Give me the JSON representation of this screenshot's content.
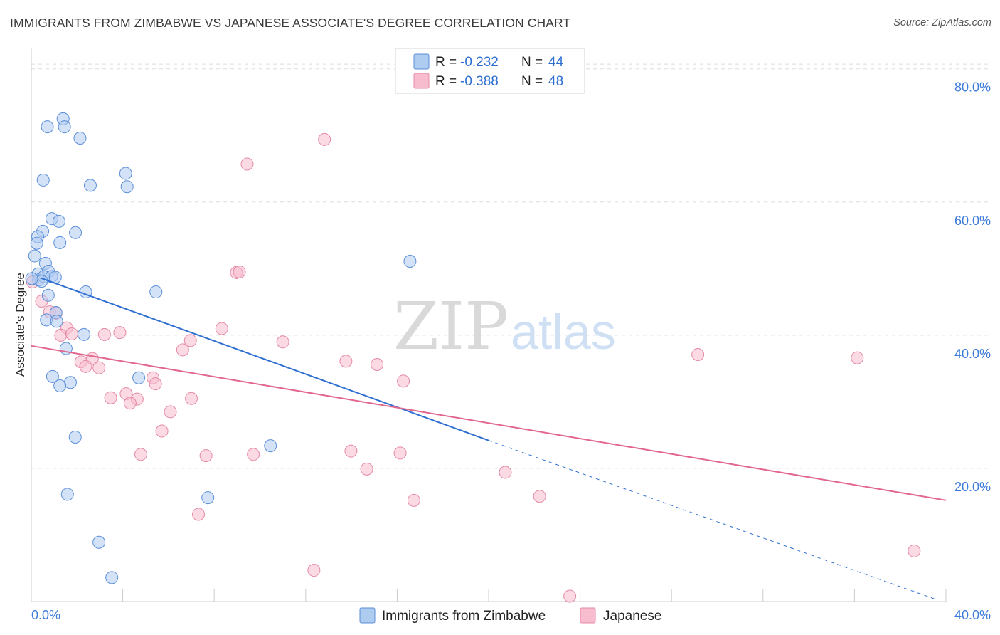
{
  "header": {
    "title": "IMMIGRANTS FROM ZIMBABWE VS JAPANESE ASSOCIATE'S DEGREE CORRELATION CHART",
    "source": "Source: ZipAtlas.com"
  },
  "watermark": {
    "zip": "ZIP",
    "atlas": "atlas"
  },
  "colors": {
    "blue_fill": "#aecbf0",
    "blue_stroke": "#5b8fd9",
    "blue_line": "#2f6fd1",
    "pink_fill": "#f7bccd",
    "pink_stroke": "#e58aa6",
    "pink_line": "#e2678f",
    "grid": "#dddddd",
    "tick_text": "#3d7bd9"
  },
  "legend": {
    "rows": [
      {
        "r_label": "R =",
        "r_value": "-0.232",
        "n_label": "N =",
        "n_value": "44"
      },
      {
        "r_label": "R =",
        "r_value": "-0.388",
        "n_label": "N =",
        "n_value": "48"
      }
    ]
  },
  "chart_data": {
    "type": "scatter",
    "title": "IMMIGRANTS FROM ZIMBABWE VS JAPANESE ASSOCIATE'S DEGREE CORRELATION CHART",
    "xlabel": "",
    "ylabel": "Associate's Degree",
    "xlim": [
      0,
      40
    ],
    "ylim": [
      0,
      82
    ],
    "x_tick_labels": [
      "0.0%",
      "40.0%"
    ],
    "y_ticks": [
      20,
      40,
      60,
      80
    ],
    "y_tick_labels": [
      "20.0%",
      "40.0%",
      "60.0%",
      "80.0%"
    ],
    "grid": true,
    "series": [
      {
        "name": "Immigrants from Zimbabwe",
        "color": "#5b8fd9",
        "R": -0.232,
        "N": 44,
        "trend": {
          "x0": 0.4,
          "y0": 48.6,
          "x1": 20.0,
          "y1": 24.2,
          "dashed_to_x": 39.5,
          "dashed_to_y": 0.4
        },
        "points": [
          [
            1.39,
            72.5
          ],
          [
            0.7,
            71.3
          ],
          [
            1.45,
            71.3
          ],
          [
            2.13,
            69.6
          ],
          [
            0.52,
            63.3
          ],
          [
            4.13,
            64.3
          ],
          [
            2.58,
            62.5
          ],
          [
            4.19,
            62.3
          ],
          [
            0.9,
            57.5
          ],
          [
            1.21,
            57.1
          ],
          [
            0.5,
            55.6
          ],
          [
            1.93,
            55.4
          ],
          [
            0.28,
            54.8
          ],
          [
            0.24,
            53.8
          ],
          [
            1.25,
            53.9
          ],
          [
            0.15,
            51.9
          ],
          [
            0.62,
            50.8
          ],
          [
            16.56,
            51.1
          ],
          [
            0.3,
            49.2
          ],
          [
            0.75,
            49.6
          ],
          [
            0.32,
            48.3
          ],
          [
            0.55,
            48.8
          ],
          [
            0.89,
            48.8
          ],
          [
            1.05,
            48.7
          ],
          [
            0.45,
            48.1
          ],
          [
            2.38,
            46.5
          ],
          [
            5.45,
            46.5
          ],
          [
            0.74,
            46.0
          ],
          [
            1.08,
            43.4
          ],
          [
            0.66,
            42.3
          ],
          [
            1.11,
            42.1
          ],
          [
            2.3,
            40.1
          ],
          [
            1.52,
            38.0
          ],
          [
            0.93,
            33.8
          ],
          [
            4.7,
            33.6
          ],
          [
            1.71,
            32.9
          ],
          [
            1.25,
            32.4
          ],
          [
            1.92,
            24.7
          ],
          [
            10.46,
            23.4
          ],
          [
            1.58,
            16.1
          ],
          [
            7.72,
            15.6
          ],
          [
            2.96,
            8.9
          ],
          [
            3.52,
            3.6
          ],
          [
            0.02,
            48.5
          ]
        ]
      },
      {
        "name": "Japanese",
        "color": "#e58aa6",
        "R": -0.388,
        "N": 48,
        "trend": {
          "x0": 0.0,
          "y0": 38.4,
          "x1": 40.0,
          "y1": 15.2
        },
        "points": [
          [
            12.82,
            69.4
          ],
          [
            9.44,
            65.7
          ],
          [
            8.97,
            49.4
          ],
          [
            9.1,
            49.5
          ],
          [
            0.05,
            48.0
          ],
          [
            0.45,
            45.1
          ],
          [
            0.8,
            43.5
          ],
          [
            1.08,
            43.3
          ],
          [
            1.55,
            41.1
          ],
          [
            1.29,
            40.0
          ],
          [
            1.77,
            40.2
          ],
          [
            3.2,
            40.1
          ],
          [
            3.87,
            40.4
          ],
          [
            8.33,
            41.0
          ],
          [
            6.96,
            39.2
          ],
          [
            11.0,
            39.0
          ],
          [
            6.62,
            37.8
          ],
          [
            2.67,
            36.5
          ],
          [
            2.17,
            36.0
          ],
          [
            2.38,
            35.3
          ],
          [
            2.96,
            35.1
          ],
          [
            13.76,
            36.1
          ],
          [
            15.12,
            35.6
          ],
          [
            29.15,
            37.1
          ],
          [
            36.12,
            36.6
          ],
          [
            5.32,
            33.6
          ],
          [
            5.43,
            32.7
          ],
          [
            16.27,
            33.1
          ],
          [
            4.15,
            31.2
          ],
          [
            3.47,
            30.6
          ],
          [
            4.63,
            30.4
          ],
          [
            7.0,
            30.5
          ],
          [
            4.32,
            29.8
          ],
          [
            6.08,
            28.5
          ],
          [
            5.71,
            25.6
          ],
          [
            13.98,
            22.6
          ],
          [
            4.79,
            22.1
          ],
          [
            7.64,
            21.9
          ],
          [
            9.71,
            22.1
          ],
          [
            16.13,
            22.3
          ],
          [
            14.67,
            19.9
          ],
          [
            20.73,
            19.4
          ],
          [
            22.23,
            15.8
          ],
          [
            16.73,
            15.2
          ],
          [
            7.31,
            13.1
          ],
          [
            12.36,
            4.7
          ],
          [
            38.61,
            7.6
          ],
          [
            23.55,
            0.8
          ]
        ]
      }
    ]
  },
  "bottom_legend": {
    "items": [
      {
        "label": "Immigrants from Zimbabwe"
      },
      {
        "label": "Japanese"
      }
    ]
  }
}
